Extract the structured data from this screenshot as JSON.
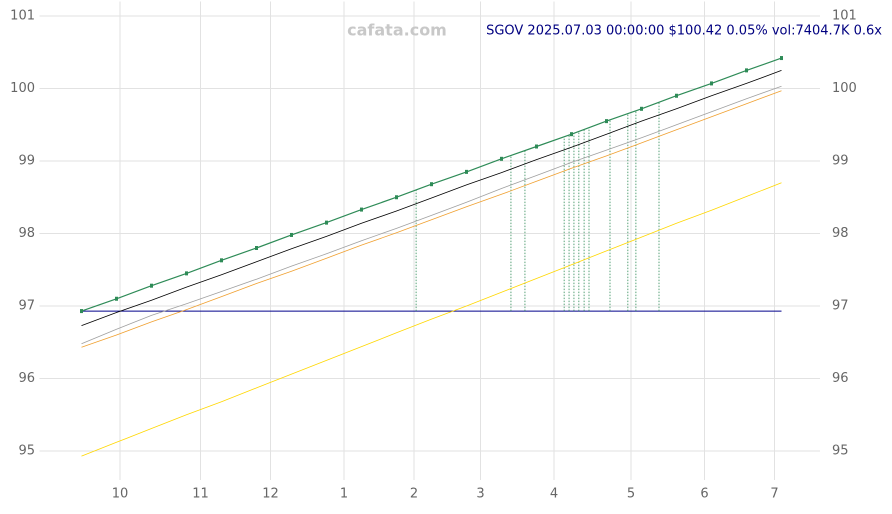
{
  "chart_data": {
    "type": "line",
    "title": "SGOV 2025.07.03 00:00:00 $100.42 0.05% vol:7404.7K 0.6x",
    "watermark": "cafata.com",
    "x": [
      -11,
      -1,
      9,
      19,
      29,
      39,
      49,
      59,
      69,
      79,
      89,
      99,
      109,
      119,
      129,
      139,
      149,
      159,
      169,
      179,
      189
    ],
    "series": [
      {
        "color": "#ffd700",
        "values": [
          94.93,
          95.12,
          95.31,
          95.5,
          95.68,
          95.87,
          96.06,
          96.25,
          96.44,
          96.63,
          96.82,
          97.0,
          97.19,
          97.38,
          97.57,
          97.76,
          97.95,
          98.14,
          98.32,
          98.51,
          98.7
        ]
      },
      {
        "color": "#f0a030",
        "values": [
          96.43,
          96.6,
          96.78,
          96.95,
          97.13,
          97.31,
          97.48,
          97.66,
          97.84,
          98.01,
          98.19,
          98.37,
          98.54,
          98.72,
          98.9,
          99.07,
          99.25,
          99.43,
          99.61,
          99.79,
          99.97
        ]
      },
      {
        "color": "#a0a0a0",
        "values": [
          96.48,
          96.68,
          96.87,
          97.03,
          97.2,
          97.37,
          97.55,
          97.72,
          97.9,
          98.07,
          98.25,
          98.43,
          98.62,
          98.8,
          98.98,
          99.15,
          99.32,
          99.5,
          99.68,
          99.86,
          100.03
        ]
      },
      {
        "color": "#000000",
        "values": [
          96.73,
          96.91,
          97.08,
          97.26,
          97.43,
          97.61,
          97.79,
          97.96,
          98.14,
          98.31,
          98.49,
          98.67,
          98.84,
          99.02,
          99.19,
          99.37,
          99.55,
          99.72,
          99.9,
          100.07,
          100.25
        ]
      },
      {
        "color": "#2e8b57",
        "values": [
          96.93,
          97.1,
          97.28,
          97.45,
          97.63,
          97.8,
          97.98,
          98.15,
          98.33,
          98.5,
          98.68,
          98.85,
          99.03,
          99.2,
          99.37,
          99.55,
          99.72,
          99.9,
          100.07,
          100.25,
          100.42
        ]
      }
    ],
    "hline": {
      "value": 96.93,
      "color": "#00008b"
    },
    "vlines": {
      "color": "#2e8b57",
      "x": [
        84.6,
        111.7,
        115.7,
        126.9,
        128.3,
        129.7,
        131.1,
        132.6,
        134,
        140,
        145.1,
        147.4,
        154
      ]
    },
    "xlim": [
      -23,
      200
    ],
    "xticks": [
      {
        "value": 0,
        "label": "10"
      },
      {
        "value": 23,
        "label": "11"
      },
      {
        "value": 43,
        "label": "12"
      },
      {
        "value": 64,
        "label": "1"
      },
      {
        "value": 84,
        "label": "2"
      },
      {
        "value": 103,
        "label": "3"
      },
      {
        "value": 124,
        "label": "4"
      },
      {
        "value": 146,
        "label": "5"
      },
      {
        "value": 167,
        "label": "6"
      },
      {
        "value": 187,
        "label": "7"
      }
    ],
    "ylim": [
      94.6,
      101.2
    ],
    "yticks": [
      95,
      96,
      97,
      98,
      99,
      100,
      101
    ],
    "grid": true
  }
}
